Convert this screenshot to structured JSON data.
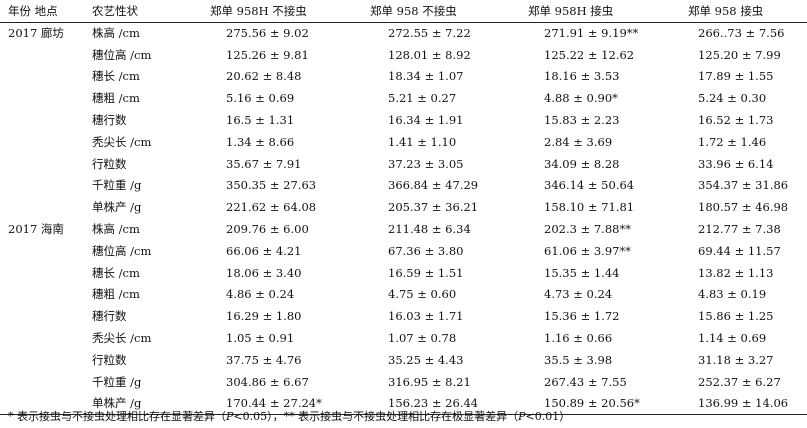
{
  "table": {
    "headers": [
      "年份 地点",
      "农艺性状",
      "郑单 958H 不接虫",
      "郑单 958 不接虫",
      "郑单 958H 接虫",
      "郑单 958 接虫"
    ],
    "groups": [
      {
        "location": "2017 廊坊",
        "rows": [
          {
            "trait": "株高 /cm",
            "values": [
              "275.56 ± 9.02",
              "272.55 ± 7.22",
              "271.91 ± 9.19**",
              "266..73 ± 7.56"
            ]
          },
          {
            "trait": "穗位高 /cm",
            "values": [
              "125.26 ± 9.81",
              "128.01 ± 8.92",
              "125.22 ± 12.62",
              "125.20 ± 7.99"
            ]
          },
          {
            "trait": "穗长 /cm",
            "values": [
              "20.62 ± 8.48",
              "18.34 ± 1.07",
              "18.16 ± 3.53",
              "17.89 ± 1.55"
            ]
          },
          {
            "trait": "穗粗 /cm",
            "values": [
              "5.16 ± 0.69",
              "5.21 ± 0.27",
              "4.88 ± 0.90*",
              "5.24 ± 0.30"
            ]
          },
          {
            "trait": "穗行数",
            "values": [
              "16.5 ± 1.31",
              "16.34 ± 1.91",
              "15.83 ± 2.23",
              "16.52 ± 1.73"
            ]
          },
          {
            "trait": "秃尖长 /cm",
            "values": [
              "1.34 ± 8.66",
              "1.41 ± 1.10",
              "2.84 ± 3.69",
              "1.72 ± 1.46"
            ]
          },
          {
            "trait": "行粒数",
            "values": [
              "35.67 ± 7.91",
              "37.23 ± 3.05",
              "34.09 ± 8.28",
              "33.96 ± 6.14"
            ]
          },
          {
            "trait": "千粒重 /g",
            "values": [
              "350.35 ± 27.63",
              "366.84 ± 47.29",
              "346.14 ± 50.64",
              "354.37 ± 31.86"
            ]
          },
          {
            "trait": "单株产 /g",
            "values": [
              "221.62 ± 64.08",
              "205.37 ± 36.21",
              "158.10 ± 71.81",
              "180.57 ± 46.98"
            ]
          }
        ]
      },
      {
        "location": "2017 海南",
        "rows": [
          {
            "trait": "株高 /cm",
            "values": [
              "209.76 ± 6.00",
              "211.48 ± 6.34",
              "202.3 ± 7.88**",
              "212.77 ± 7.38"
            ]
          },
          {
            "trait": "穗位高 /cm",
            "values": [
              "66.06 ± 4.21",
              "67.36 ± 3.80",
              "61.06 ± 3.97**",
              "69.44 ± 11.57"
            ]
          },
          {
            "trait": "穗长 /cm",
            "values": [
              "18.06 ± 3.40",
              "16.59 ± 1.51",
              "15.35 ± 1.44",
              "13.82 ± 1.13"
            ]
          },
          {
            "trait": "穗粗 /cm",
            "values": [
              "4.86 ± 0.24",
              "4.75 ± 0.60",
              "4.73 ± 0.24",
              "4.83 ± 0.19"
            ]
          },
          {
            "trait": "穗行数",
            "values": [
              "16.29 ± 1.80",
              "16.03 ± 1.71",
              "15.36 ± 1.72",
              "15.86 ± 1.25"
            ]
          },
          {
            "trait": "秃尖长 /cm",
            "values": [
              "1.05 ± 0.91",
              "1.07 ± 0.78",
              "1.16 ± 0.66",
              "1.14 ± 0.69"
            ]
          },
          {
            "trait": "行粒数",
            "values": [
              "37.75 ± 4.76",
              "35.25 ± 4.43",
              "35.5 ± 3.98",
              "31.18 ± 3.27"
            ]
          },
          {
            "trait": "千粒重 /g",
            "values": [
              "304.86 ± 6.67",
              "316.95 ± 8.21",
              "267.43 ± 7.55",
              "252.37 ± 6.27"
            ]
          },
          {
            "trait": "单株产 /g",
            "values": [
              "170.44 ± 27.24*",
              "156.23 ± 26.44",
              "150.89 ± 20.56*",
              "136.99 ± 14.06"
            ]
          }
        ]
      }
    ]
  },
  "footnote": {
    "part1": "* 表示接虫与不接虫处理相比存在显著差异（",
    "p1": "P",
    "part2": "<0.05），** 表示接虫与不接虫处理相比存在极显著差异（",
    "p2": "P",
    "part3": "<0.01）"
  }
}
